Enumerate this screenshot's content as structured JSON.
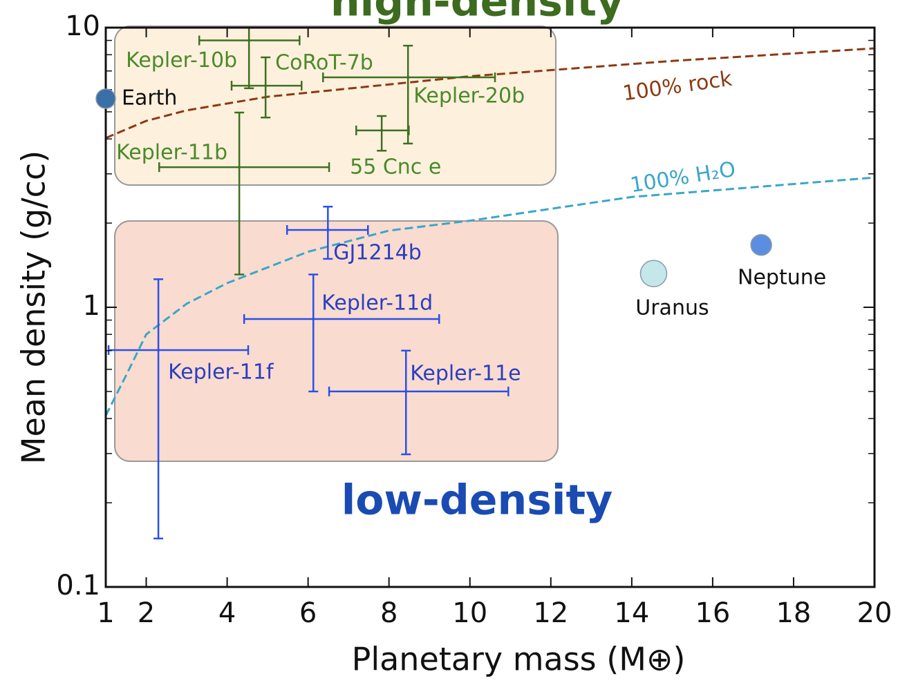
{
  "chart_data": {
    "type": "scatter",
    "title": "high-density",
    "subtitle": "low-density",
    "title_color": "#3d6b1f",
    "subtitle_color": "#1a4bb3",
    "x_label": "Planetary mass (M⊕)",
    "y_label": "Mean density (g/cc)",
    "xlim": [
      1,
      20
    ],
    "ylim": [
      0.1,
      10
    ],
    "y_log": true,
    "xticks": [
      1,
      2,
      4,
      6,
      8,
      10,
      12,
      14,
      16,
      18,
      20
    ],
    "yticks": [
      0.1,
      1,
      10
    ],
    "points": [
      {
        "name": "Kepler-10b",
        "color": "#3b7020",
        "label_color": "#4b8a2a",
        "x": 4.54,
        "x_low": 3.31,
        "x_high": 5.79,
        "y": 9.0,
        "y_low": 6.07,
        "y_high": 10
      },
      {
        "name": "CoRoT-7b",
        "color": "#3b7020",
        "label_color": "#4b8a2a",
        "x": 4.95,
        "x_low": 4.11,
        "x_high": 5.84,
        "y": 6.2,
        "y_low": 4.77,
        "y_high": 7.83
      },
      {
        "name": "Kepler-20b",
        "color": "#3b7020",
        "label_color": "#4b8a2a",
        "x": 8.47,
        "x_low": 6.37,
        "x_high": 10.62,
        "y": 6.64,
        "y_low": 3.85,
        "y_high": 8.62
      },
      {
        "name": "55 Cnc e",
        "color": "#3b7020",
        "label_color": "#4b8a2a",
        "x": 7.82,
        "x_low": 7.19,
        "x_high": 8.49,
        "y": 4.29,
        "y_low": 3.63,
        "y_high": 4.83
      },
      {
        "name": "Kepler-11b",
        "color": "#3b7020",
        "label_color": "#4b8a2a",
        "x": 4.3,
        "x_low": 2.32,
        "x_high": 6.52,
        "y": 3.17,
        "y_low": 1.31,
        "y_high": 4.97
      },
      {
        "name": "GJ1214b",
        "color": "#2a50e8",
        "label_color": "#2a3fc0",
        "x": 6.49,
        "x_low": 5.48,
        "x_high": 7.48,
        "y": 1.89,
        "y_low": 1.49,
        "y_high": 2.29
      },
      {
        "name": "Kepler-11d",
        "color": "#2a50e8",
        "label_color": "#2a3fc0",
        "x": 6.13,
        "x_low": 4.42,
        "x_high": 9.24,
        "y": 0.908,
        "y_low": 0.5,
        "y_high": 1.31
      },
      {
        "name": "Kepler-11f",
        "color": "#2a50e8",
        "label_color": "#2a3fc0",
        "x": 2.3,
        "x_low": 1.07,
        "x_high": 4.52,
        "y": 0.703,
        "y_low": 0.149,
        "y_high": 1.26
      },
      {
        "name": "Kepler-11e",
        "color": "#2a50e8",
        "label_color": "#2a3fc0",
        "x": 8.42,
        "x_low": 6.52,
        "x_high": 10.95,
        "y": 0.5,
        "y_low": 0.298,
        "y_high": 0.7
      }
    ],
    "planets": [
      {
        "name": "Earth",
        "color": "#3a6fa8",
        "x": 1.0,
        "y": 5.57
      },
      {
        "name": "Uranus",
        "color": "#c4e8ea",
        "x": 14.54,
        "y": 1.32
      },
      {
        "name": "Neptune",
        "color": "#5b8ee0",
        "x": 17.2,
        "y": 1.67
      }
    ],
    "curves": [
      {
        "name": "100% rock",
        "color": "#8b3a12",
        "x": [
          1,
          2,
          3,
          5,
          10,
          15,
          20
        ],
        "y": [
          4.03,
          4.64,
          5.06,
          5.66,
          6.7,
          7.6,
          8.43
        ]
      },
      {
        "name": "100% H₂O",
        "color": "#3aa6c8",
        "x": [
          1,
          1.5,
          2,
          3,
          4,
          6,
          8,
          10,
          14,
          20
        ],
        "y": [
          0.41,
          0.57,
          0.8,
          1.03,
          1.22,
          1.58,
          1.88,
          2.04,
          2.48,
          2.91
        ]
      }
    ]
  }
}
